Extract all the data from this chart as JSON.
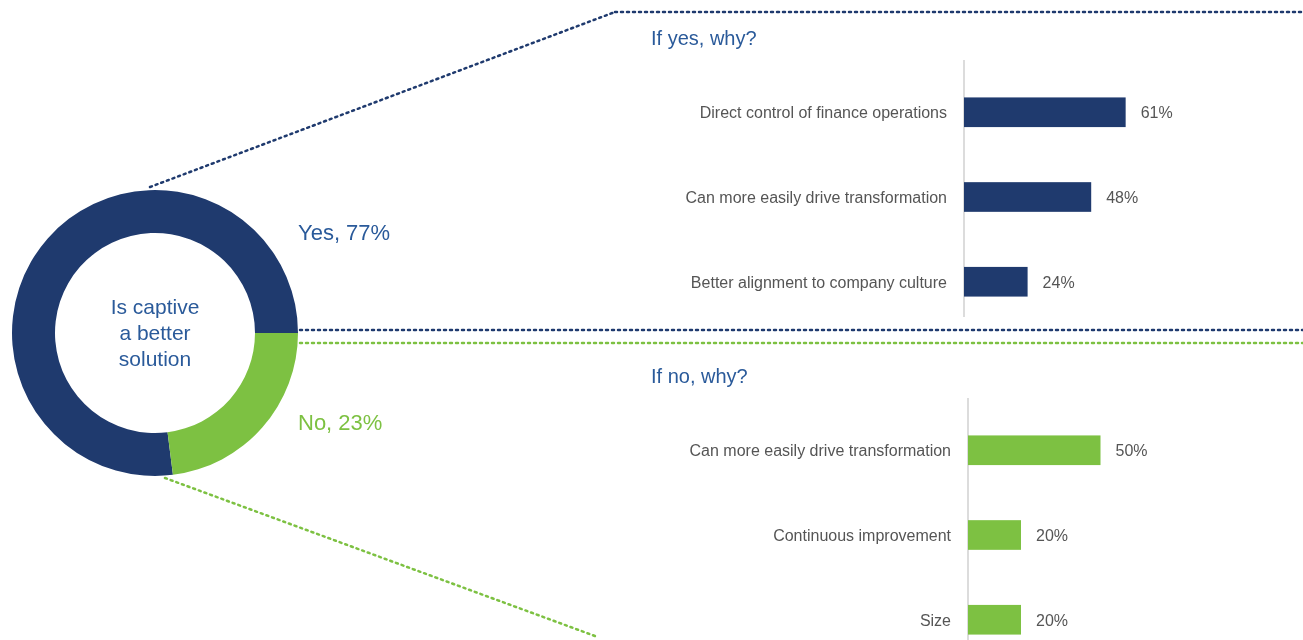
{
  "chart_data": [
    {
      "type": "donut",
      "title": "Is captive a better solution",
      "categories": [
        "Yes",
        "No"
      ],
      "values": [
        77,
        23
      ],
      "colors": [
        "#1f3a6e",
        "#7dc142"
      ],
      "value_labels": [
        "77%",
        "23%"
      ]
    },
    {
      "type": "bar",
      "orientation": "horizontal",
      "title": "If yes, why?",
      "categories": [
        "Direct control of finance operations",
        "Can more easily drive transformation",
        "Better alignment to company culture"
      ],
      "values": [
        61,
        48,
        24
      ],
      "color": "#1f3a6e",
      "value_labels": [
        "61%",
        "48%",
        "24%"
      ]
    },
    {
      "type": "bar",
      "orientation": "horizontal",
      "title": "If no, why?",
      "categories": [
        "Can more easily drive transformation",
        "Continuous improvement",
        "Size"
      ],
      "values": [
        50,
        20,
        20
      ],
      "color": "#7dc142",
      "value_labels": [
        "50%",
        "20%",
        "20%"
      ]
    }
  ]
}
